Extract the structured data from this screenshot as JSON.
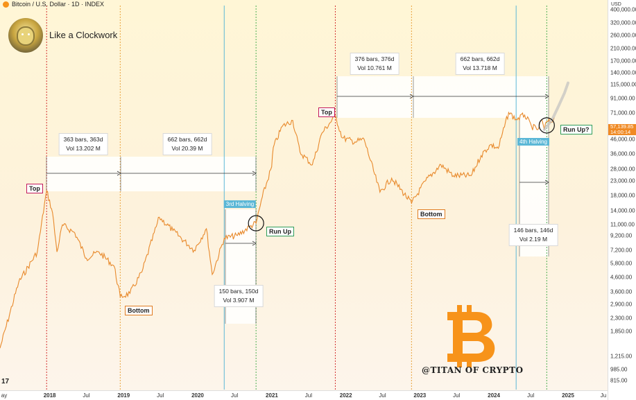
{
  "header": {
    "symbol_text": "Bitcoin / U.S. Dollar · 1D · INDEX"
  },
  "title": "Like a Clockwork",
  "watermark": "@TITAN OF CRYPTO",
  "tv_logo": "17",
  "y_axis": {
    "currency": "USD",
    "ticks": [
      "400,000.00",
      "320,000.00",
      "260,000.00",
      "210,000.00",
      "170,000.00",
      "140,000.00",
      "115,000.00",
      "91,000.00",
      "71,000.00",
      "46,000.00",
      "36,000.00",
      "28,000.00",
      "23,000.00",
      "18,000.00",
      "14,000.00",
      "11,000.00",
      "9,200.00",
      "7,200.00",
      "5,800.00",
      "4,600.00",
      "3,600.00",
      "2,900.00",
      "2,300.00",
      "1,850.00",
      "1,215.00",
      "985.00",
      "815.00"
    ],
    "current_price": "57,139.85",
    "countdown": "14:00:14"
  },
  "x_axis": {
    "ticks": [
      {
        "label": "ay",
        "year": false
      },
      {
        "label": "2018",
        "year": true
      },
      {
        "label": "Jul",
        "year": false
      },
      {
        "label": "2019",
        "year": true
      },
      {
        "label": "Jul",
        "year": false
      },
      {
        "label": "2020",
        "year": true
      },
      {
        "label": "Jul",
        "year": false
      },
      {
        "label": "2021",
        "year": true
      },
      {
        "label": "Jul",
        "year": false
      },
      {
        "label": "2022",
        "year": true
      },
      {
        "label": "Jul",
        "year": false
      },
      {
        "label": "2023",
        "year": true
      },
      {
        "label": "Jul",
        "year": false
      },
      {
        "label": "2024",
        "year": true
      },
      {
        "label": "Jul",
        "year": false
      },
      {
        "label": "2025",
        "year": true
      },
      {
        "label": "Ju",
        "year": false
      }
    ]
  },
  "measure_boxes": [
    {
      "line1": "363 bars, 363d",
      "line2": "Vol 13.202 M"
    },
    {
      "line1": "662 bars, 662d",
      "line2": "Vol 20.39 M"
    },
    {
      "line1": "150 bars, 150d",
      "line2": "Vol 3.907 M"
    },
    {
      "line1": "376 bars, 376d",
      "line2": "Vol 10.761 M"
    },
    {
      "line1": "662 bars, 662d",
      "line2": "Vol 13.718 M"
    },
    {
      "line1": "146 bars, 146d",
      "line2": "Vol 2.19 M"
    }
  ],
  "labels": {
    "top1": "Top",
    "bottom1": "Bottom",
    "run_up": "Run Up",
    "top2": "Top",
    "bottom2": "Bottom",
    "run_up_q": "Run Up?"
  },
  "halvings": [
    "3rd Halving",
    "4th Halving"
  ],
  "colors": {
    "price_line": "#e8892b",
    "halving_line": "#5bb7d6",
    "top_line": "#d32f2f",
    "bottom_line": "#e9a23b",
    "runup_line": "#4caf50",
    "bitcoin_logo": "#f7931a"
  },
  "chart_data": {
    "type": "line",
    "title": "Like a Clockwork",
    "series": [
      {
        "name": "Bitcoin / U.S. Dollar",
        "x": [
          "2017-05-01",
          "2017-08-01",
          "2017-11-01",
          "2017-12-17",
          "2018-01-15",
          "2018-02-06",
          "2018-03-05",
          "2018-05-05",
          "2018-07-01",
          "2018-09-01",
          "2018-11-15",
          "2018-12-15",
          "2019-02-01",
          "2019-04-01",
          "2019-06-26",
          "2019-09-01",
          "2019-12-15",
          "2020-02-13",
          "2020-03-13",
          "2020-05-11",
          "2020-07-15",
          "2020-09-15",
          "2020-10-15",
          "2020-11-15",
          "2020-12-31",
          "2021-01-08",
          "2021-02-21",
          "2021-04-14",
          "2021-05-20",
          "2021-07-20",
          "2021-09-05",
          "2021-11-10",
          "2021-12-15",
          "2022-02-15",
          "2022-04-01",
          "2022-06-18",
          "2022-08-15",
          "2022-11-21",
          "2023-01-30",
          "2023-04-15",
          "2023-06-15",
          "2023-09-11",
          "2023-10-30",
          "2023-12-15",
          "2024-01-23",
          "2024-03-14",
          "2024-04-20",
          "2024-06-01",
          "2024-07-05",
          "2024-08-05",
          "2024-08-25",
          "2024-09-06",
          "2024-09-18",
          "2024-10-10",
          "2024-10-25"
        ],
        "y": [
          1400,
          4200,
          7000,
          19500,
          13500,
          7000,
          11000,
          9600,
          6300,
          7000,
          5500,
          3300,
          3500,
          5000,
          12500,
          10000,
          7200,
          10300,
          4800,
          8800,
          9200,
          10700,
          11300,
          17500,
          29000,
          40000,
          57000,
          63000,
          37000,
          30000,
          51000,
          68000,
          47000,
          44000,
          46000,
          19000,
          24000,
          15800,
          23000,
          30000,
          25000,
          25000,
          35000,
          42000,
          39500,
          72000,
          64000,
          69000,
          57000,
          54000,
          64000,
          54000,
          62000,
          61000,
          66000
        ]
      },
      {
        "name": "Projection",
        "x": [
          "2024-09-06",
          "2024-10-15",
          "2024-11-15",
          "2024-12-15",
          "2025-01-01"
        ],
        "y": [
          54000,
          64000,
          80000,
          100000,
          118000
        ]
      }
    ],
    "ylabel": "USD",
    "y_scale": "log",
    "ylim": [
      700,
      430000
    ],
    "xlim": [
      "2017-05-01",
      "2025-07-15"
    ],
    "annotations": [
      {
        "text": "Top",
        "x": "2017-12-17"
      },
      {
        "text": "Bottom",
        "x": "2018-12-15"
      },
      {
        "text": "3rd Halving",
        "x": "2020-05-11"
      },
      {
        "text": "Run Up",
        "x": "2020-10-15"
      },
      {
        "text": "Top",
        "x": "2021-11-10"
      },
      {
        "text": "Bottom",
        "x": "2022-11-21"
      },
      {
        "text": "4th Halving",
        "x": "2024-04-20"
      },
      {
        "text": "Run Up?",
        "x": "2024-09-18"
      }
    ]
  }
}
